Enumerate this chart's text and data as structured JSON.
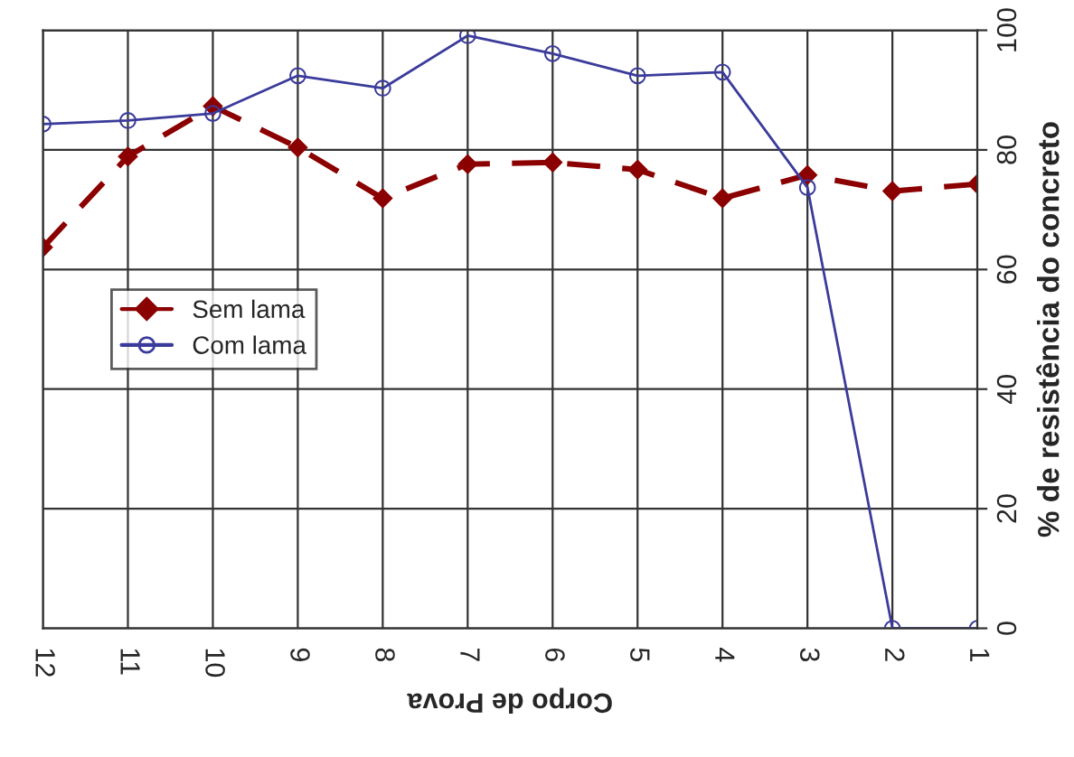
{
  "chart_data": {
    "type": "line",
    "xlabel": "Corpo de Prova",
    "ylabel": "% de resistência do concreto",
    "categories": [
      "12",
      "11",
      "10",
      "9",
      "8",
      "7",
      "6",
      "5",
      "4",
      "3",
      "2",
      "1"
    ],
    "series": [
      {
        "name": "Sem lama",
        "color": "#8b0000",
        "marker": "diamond",
        "line_style": "dashed",
        "values": [
          63.7,
          78.9,
          87.3,
          80.4,
          71.9,
          77.6,
          77.9,
          76.7,
          71.9,
          75.8,
          73.1,
          74.3
        ]
      },
      {
        "name": "Com lama",
        "color": "#3b3b9b",
        "marker": "circle",
        "line_style": "solid",
        "values": [
          84.3,
          84.9,
          86.1,
          92.4,
          90.3,
          99.1,
          96.1,
          92.4,
          93.0,
          73.7,
          0,
          0
        ]
      }
    ],
    "ylim": [
      0,
      100
    ],
    "yticks": [
      0,
      20,
      40,
      60,
      80,
      100
    ],
    "grid": true,
    "legend": "center left"
  }
}
